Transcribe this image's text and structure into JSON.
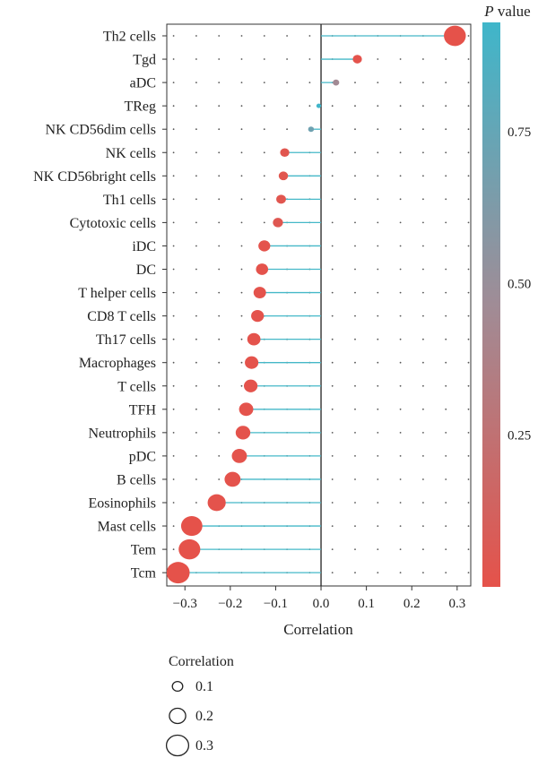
{
  "chart_data": {
    "type": "lollipop",
    "xlabel": "Correlation",
    "xlim": [
      -0.34,
      0.33
    ],
    "xticks": [
      -0.3,
      -0.2,
      -0.1,
      0.0,
      0.1,
      0.2,
      0.3
    ],
    "xtick_labels": [
      "−0.3",
      "−0.2",
      "−0.1",
      "0.0",
      "0.1",
      "0.2",
      "0.3"
    ],
    "categories": [
      "Th2 cells",
      "Tgd",
      "aDC",
      "TReg",
      "NK CD56dim cells",
      "NK cells",
      "NK CD56bright cells",
      "Th1 cells",
      "Cytotoxic cells",
      "iDC",
      "DC",
      "T helper cells",
      "CD8 T cells",
      "Th17 cells",
      "Macrophages",
      "T cells",
      "TFH",
      "Neutrophils",
      "pDC",
      "B cells",
      "Eosinophils",
      "Mast cells",
      "Tem",
      "Tcm"
    ],
    "correlation": [
      0.295,
      0.08,
      0.033,
      -0.005,
      -0.022,
      -0.08,
      -0.083,
      -0.088,
      -0.095,
      -0.125,
      -0.13,
      -0.135,
      -0.14,
      -0.148,
      -0.153,
      -0.155,
      -0.165,
      -0.172,
      -0.18,
      -0.195,
      -0.23,
      -0.285,
      -0.29,
      -0.315
    ],
    "p_value": [
      0.001,
      0.01,
      0.45,
      0.92,
      0.7,
      0.03,
      0.03,
      0.03,
      0.04,
      0.01,
      0.01,
      0.01,
      0.01,
      0.01,
      0.01,
      0.01,
      0.01,
      0.01,
      0.01,
      0.01,
      0.01,
      0.001,
      0.001,
      0.001
    ],
    "colorbar": {
      "title_italic": "P",
      "title_rest": " value",
      "ticks": [
        0.75,
        0.5,
        0.25
      ],
      "tick_labels": [
        "0.75",
        "0.50",
        "0.25"
      ],
      "range": [
        0.0,
        0.93
      ],
      "color_low": "#e5524a",
      "color_high": "#3fb6ca"
    },
    "size_legend": {
      "title": "Correlation",
      "labels": [
        "0.1",
        "0.2",
        "0.3"
      ],
      "values": [
        0.1,
        0.2,
        0.3
      ]
    },
    "stem_color": "#45b8c8",
    "grid": "dotted"
  }
}
